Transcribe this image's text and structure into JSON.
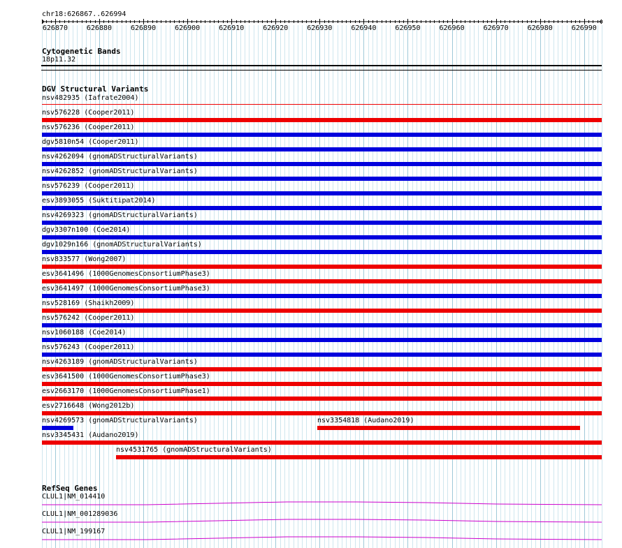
{
  "ruler": {
    "region": "chr18:626867..626994",
    "ticks": [
      "626870",
      "626880",
      "626890",
      "626900",
      "626910",
      "626920",
      "626930",
      "626940",
      "626950",
      "626960",
      "626970",
      "626980",
      "626990"
    ]
  },
  "cytoband": {
    "title": "Cytogenetic Bands",
    "band": "18p11.32"
  },
  "dgv": {
    "title": "DGV Structural Variants",
    "colors": {
      "loss": "#ee0000",
      "gain": "#0000dd"
    },
    "variants": [
      {
        "label": "nsv482935 (Iafrate2004)",
        "color": "loss",
        "bar": "thin"
      },
      {
        "label": "nsv576228 (Cooper2011)",
        "color": "loss"
      },
      {
        "label": "nsv576236 (Cooper2011)",
        "color": "gain"
      },
      {
        "label": "dgv5810n54 (Cooper2011)",
        "color": "gain"
      },
      {
        "label": "nsv4262094 (gnomADStructuralVariants)",
        "color": "gain"
      },
      {
        "label": "nsv4262852 (gnomADStructuralVariants)",
        "color": "gain"
      },
      {
        "label": "nsv576239 (Cooper2011)",
        "color": "gain"
      },
      {
        "label": "esv3893055 (Suktitipat2014)",
        "color": "gain"
      },
      {
        "label": "nsv4269323 (gnomADStructuralVariants)",
        "color": "gain"
      },
      {
        "label": "dgv3307n100 (Coe2014)",
        "color": "gain"
      },
      {
        "label": "dgv1029n166 (gnomADStructuralVariants)",
        "color": "gain"
      },
      {
        "label": "nsv833577 (Wong2007)",
        "color": "loss"
      },
      {
        "label": "esv3641496 (1000GenomesConsortiumPhase3)",
        "color": "loss"
      },
      {
        "label": "esv3641497 (1000GenomesConsortiumPhase3)",
        "color": "gain"
      },
      {
        "label": "nsv528169 (Shaikh2009)",
        "color": "loss"
      },
      {
        "label": "nsv576242 (Cooper2011)",
        "color": "gain"
      },
      {
        "label": "nsv1060188 (Coe2014)",
        "color": "gain"
      },
      {
        "label": "nsv576243 (Cooper2011)",
        "color": "gain"
      },
      {
        "label": "nsv4263189 (gnomADStructuralVariants)",
        "color": "loss"
      },
      {
        "label": "esv3641500 (1000GenomesConsortiumPhase3)",
        "color": "loss"
      },
      {
        "label": "esv2663170 (1000GenomesConsortiumPhase1)",
        "color": "loss"
      },
      {
        "label": "esv2716648 (Wong2012b)",
        "color": "loss"
      }
    ],
    "packed": [
      {
        "label": "nsv4269573 (gnomADStructuralVariants)",
        "color": "gain"
      },
      {
        "label": "nsv3354818 (Audano2019)",
        "color": "loss"
      },
      {
        "label": "nsv3345431 (Audano2019)",
        "color": "loss"
      },
      {
        "label": "nsv4531765 (gnomADStructuralVariants)",
        "color": "loss"
      }
    ]
  },
  "refseq": {
    "title": "RefSeq Genes",
    "color": "#cc00cc",
    "genes": [
      {
        "label": "CLUL1|NM_014410"
      },
      {
        "label": "CLUL1|NM_001289036"
      },
      {
        "label": "CLUL1|NM_199167"
      }
    ]
  }
}
